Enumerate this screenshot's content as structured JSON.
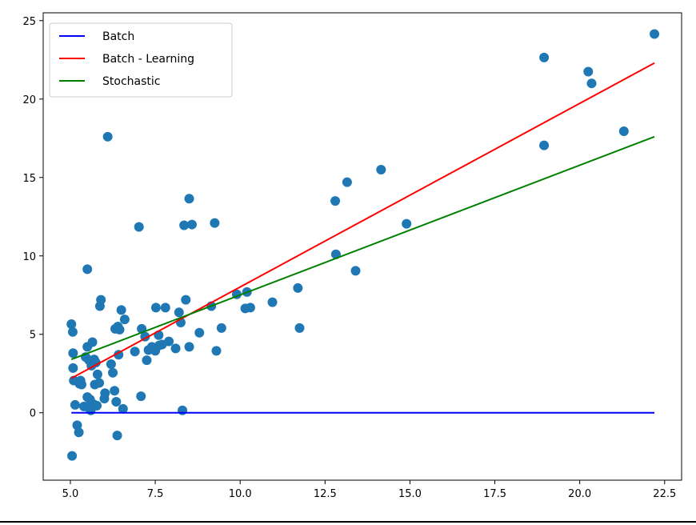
{
  "chart_data": {
    "type": "scatter",
    "title": "",
    "xlabel": "",
    "ylabel": "",
    "xlim": [
      4.2,
      23.0
    ],
    "ylim": [
      -4.3,
      25.5
    ],
    "xticks": [
      "5.0",
      "7.5",
      "10.0",
      "12.5",
      "15.0",
      "17.5",
      "20.0",
      "22.5"
    ],
    "yticks": [
      "0",
      "5",
      "10",
      "15",
      "20",
      "25"
    ],
    "grid": false,
    "legend_position": "top-left",
    "scatter": {
      "color": "#1f77b4",
      "points": [
        [
          5.03,
          5.65
        ],
        [
          5.05,
          -2.75
        ],
        [
          5.07,
          5.15
        ],
        [
          5.08,
          3.8
        ],
        [
          5.08,
          2.85
        ],
        [
          5.1,
          2.05
        ],
        [
          5.14,
          0.5
        ],
        [
          5.2,
          -0.8
        ],
        [
          5.25,
          -1.25
        ],
        [
          5.27,
          1.85
        ],
        [
          5.3,
          2.05
        ],
        [
          5.33,
          1.8
        ],
        [
          5.4,
          0.4
        ],
        [
          5.45,
          3.55
        ],
        [
          5.5,
          1.0
        ],
        [
          5.5,
          4.2
        ],
        [
          5.5,
          9.15
        ],
        [
          5.52,
          0.35
        ],
        [
          5.55,
          3.35
        ],
        [
          5.58,
          0.85
        ],
        [
          5.6,
          0.15
        ],
        [
          5.62,
          3.0
        ],
        [
          5.65,
          4.5
        ],
        [
          5.68,
          0.55
        ],
        [
          5.7,
          3.4
        ],
        [
          5.72,
          1.8
        ],
        [
          5.75,
          3.2
        ],
        [
          5.78,
          0.45
        ],
        [
          5.8,
          2.45
        ],
        [
          5.85,
          1.9
        ],
        [
          5.87,
          6.8
        ],
        [
          5.9,
          7.2
        ],
        [
          6.0,
          0.9
        ],
        [
          6.02,
          1.25
        ],
        [
          6.1,
          17.6
        ],
        [
          6.2,
          3.1
        ],
        [
          6.25,
          2.55
        ],
        [
          6.3,
          1.4
        ],
        [
          6.32,
          5.35
        ],
        [
          6.35,
          0.7
        ],
        [
          6.38,
          -1.45
        ],
        [
          6.4,
          5.5
        ],
        [
          6.42,
          3.7
        ],
        [
          6.45,
          5.3
        ],
        [
          6.5,
          6.55
        ],
        [
          6.55,
          0.25
        ],
        [
          6.6,
          5.95
        ],
        [
          6.9,
          3.9
        ],
        [
          7.02,
          11.85
        ],
        [
          7.08,
          1.05
        ],
        [
          7.1,
          5.35
        ],
        [
          7.2,
          4.85
        ],
        [
          7.25,
          3.35
        ],
        [
          7.3,
          4.0
        ],
        [
          7.4,
          4.2
        ],
        [
          7.5,
          3.95
        ],
        [
          7.52,
          6.7
        ],
        [
          7.6,
          4.95
        ],
        [
          7.62,
          4.3
        ],
        [
          7.7,
          4.35
        ],
        [
          7.8,
          6.7
        ],
        [
          7.9,
          4.55
        ],
        [
          8.1,
          4.1
        ],
        [
          8.2,
          6.4
        ],
        [
          8.25,
          5.75
        ],
        [
          8.3,
          0.15
        ],
        [
          8.35,
          11.95
        ],
        [
          8.4,
          7.2
        ],
        [
          8.5,
          4.2
        ],
        [
          8.5,
          13.65
        ],
        [
          8.58,
          12.0
        ],
        [
          8.8,
          5.1
        ],
        [
          9.15,
          6.8
        ],
        [
          9.25,
          12.1
        ],
        [
          9.3,
          3.95
        ],
        [
          9.45,
          5.4
        ],
        [
          9.9,
          7.55
        ],
        [
          10.15,
          6.65
        ],
        [
          10.2,
          7.7
        ],
        [
          10.3,
          6.7
        ],
        [
          10.95,
          7.05
        ],
        [
          11.7,
          7.95
        ],
        [
          11.75,
          5.4
        ],
        [
          12.8,
          13.5
        ],
        [
          12.82,
          10.1
        ],
        [
          13.15,
          14.7
        ],
        [
          13.4,
          9.05
        ],
        [
          14.15,
          15.5
        ],
        [
          14.9,
          12.05
        ],
        [
          18.95,
          22.65
        ],
        [
          18.95,
          17.05
        ],
        [
          20.25,
          21.75
        ],
        [
          20.35,
          21.0
        ],
        [
          21.3,
          17.95
        ],
        [
          22.2,
          24.15
        ]
      ]
    },
    "series": [
      {
        "name": "Batch",
        "color": "#0000ff",
        "x": [
          5.03,
          22.2
        ],
        "y": [
          0.0,
          0.0
        ]
      },
      {
        "name": "Batch - Learning",
        "color": "#ff0000",
        "x": [
          5.03,
          22.2
        ],
        "y": [
          2.2,
          22.3
        ]
      },
      {
        "name": "Stochastic",
        "color": "#008000",
        "x": [
          5.03,
          22.2
        ],
        "y": [
          3.4,
          17.6
        ]
      }
    ]
  }
}
